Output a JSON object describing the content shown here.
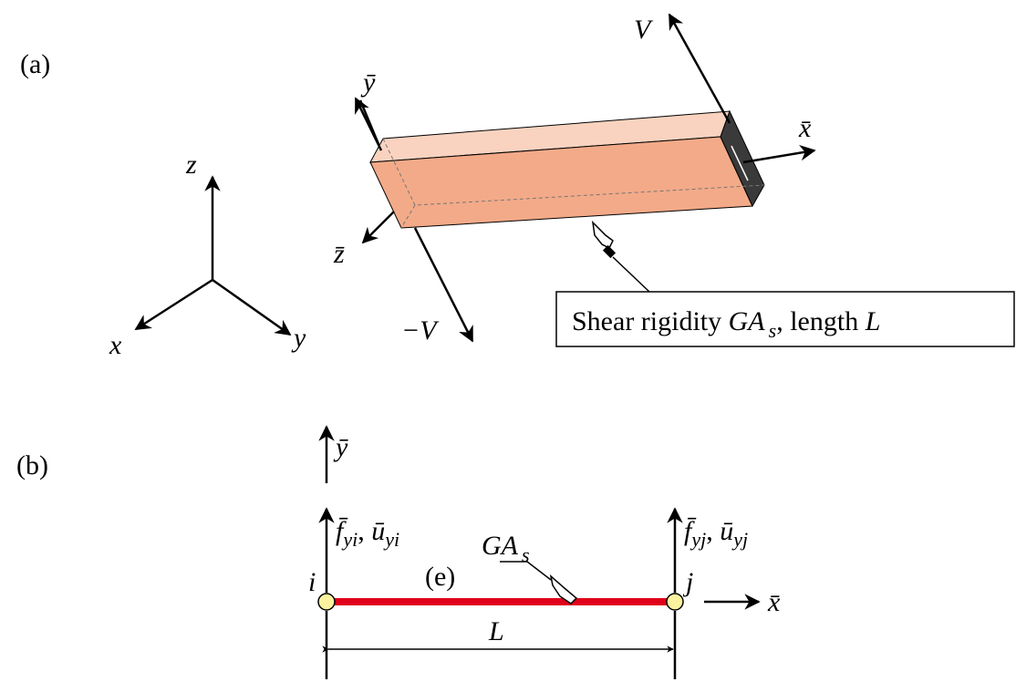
{
  "panel_a": {
    "label": "(a)",
    "global_axes": {
      "x": "x",
      "y": "y",
      "z": "z"
    },
    "local_axes": {
      "x": "x̄",
      "y": "ȳ",
      "z": "z̄"
    },
    "forces": {
      "positive": "V",
      "negative": "−V"
    },
    "callout": {
      "prefix": "Shear rigidity ",
      "symbol": "GA",
      "subscript": "s",
      "middle": ", length ",
      "length": "L"
    }
  },
  "panel_b": {
    "label": "(b)",
    "axis_y": "ȳ",
    "axis_x": "x̄",
    "node_i": {
      "label": "i",
      "force": "f̄",
      "force_sub": "yi",
      "separator": ", ",
      "disp": "ū",
      "disp_sub": "yi"
    },
    "node_j": {
      "label": "j",
      "force": "f̄",
      "force_sub": "yj",
      "separator": ", ",
      "disp": "ū",
      "disp_sub": "yj"
    },
    "element": "(e)",
    "rigidity": {
      "symbol": "GA",
      "subscript": "s"
    },
    "length": "L"
  }
}
